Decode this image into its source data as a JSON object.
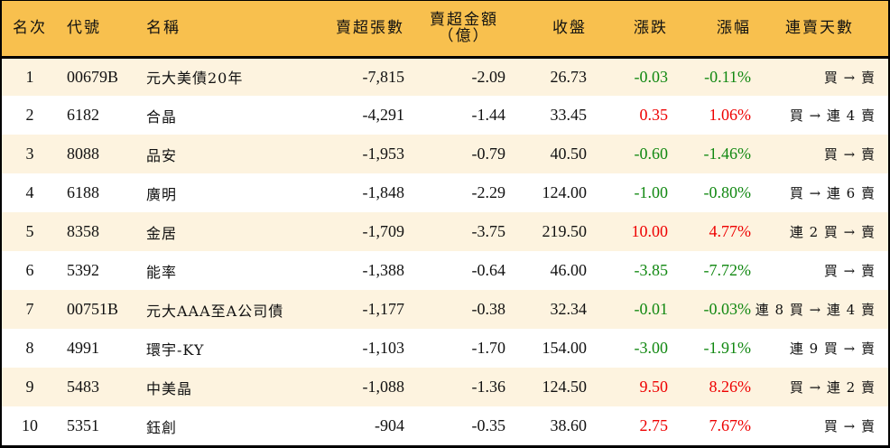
{
  "table": {
    "headers": {
      "rank": "名次",
      "code": "代號",
      "name": "名稱",
      "net_sell_volume": "賣超張數",
      "net_sell_amount_line1": "賣超金額",
      "net_sell_amount_line2": "（億）",
      "close": "收盤",
      "change": "漲跌",
      "change_pct": "漲幅",
      "streak": "連賣天數"
    },
    "colors": {
      "header_bg": "#F8C04E",
      "alt_row_bg": "#FDF3DF",
      "up": "#EE0000",
      "down": "#118811",
      "border": "#000000"
    },
    "rows": [
      {
        "rank": "1",
        "code": "00679B",
        "name": "元大美債20年",
        "volume": "-7,815",
        "amount": "-2.09",
        "close": "26.73",
        "change": "-0.03",
        "pct": "-0.11%",
        "dir": "down",
        "streak": "買 → 賣"
      },
      {
        "rank": "2",
        "code": "6182",
        "name": "合晶",
        "volume": "-4,291",
        "amount": "-1.44",
        "close": "33.45",
        "change": "0.35",
        "pct": "1.06%",
        "dir": "up",
        "streak": "買 → 連 4 賣"
      },
      {
        "rank": "3",
        "code": "8088",
        "name": "品安",
        "volume": "-1,953",
        "amount": "-0.79",
        "close": "40.50",
        "change": "-0.60",
        "pct": "-1.46%",
        "dir": "down",
        "streak": "買 → 賣"
      },
      {
        "rank": "4",
        "code": "6188",
        "name": "廣明",
        "volume": "-1,848",
        "amount": "-2.29",
        "close": "124.00",
        "change": "-1.00",
        "pct": "-0.80%",
        "dir": "down",
        "streak": "買 → 連 6 賣"
      },
      {
        "rank": "5",
        "code": "8358",
        "name": "金居",
        "volume": "-1,709",
        "amount": "-3.75",
        "close": "219.50",
        "change": "10.00",
        "pct": "4.77%",
        "dir": "up",
        "streak": "連 2 買 → 賣"
      },
      {
        "rank": "6",
        "code": "5392",
        "name": "能率",
        "volume": "-1,388",
        "amount": "-0.64",
        "close": "46.00",
        "change": "-3.85",
        "pct": "-7.72%",
        "dir": "down",
        "streak": "買 → 賣"
      },
      {
        "rank": "7",
        "code": "00751B",
        "name": "元大AAA至A公司債",
        "volume": "-1,177",
        "amount": "-0.38",
        "close": "32.34",
        "change": "-0.01",
        "pct": "-0.03%",
        "dir": "down",
        "streak": "連 8 買 → 連 4 賣"
      },
      {
        "rank": "8",
        "code": "4991",
        "name": "環宇-KY",
        "volume": "-1,103",
        "amount": "-1.70",
        "close": "154.00",
        "change": "-3.00",
        "pct": "-1.91%",
        "dir": "down",
        "streak": "連 9 買 → 賣"
      },
      {
        "rank": "9",
        "code": "5483",
        "name": "中美晶",
        "volume": "-1,088",
        "amount": "-1.36",
        "close": "124.50",
        "change": "9.50",
        "pct": "8.26%",
        "dir": "up",
        "streak": "買 → 連 2 賣"
      },
      {
        "rank": "10",
        "code": "5351",
        "name": "鈺創",
        "volume": "-904",
        "amount": "-0.35",
        "close": "38.60",
        "change": "2.75",
        "pct": "7.67%",
        "dir": "up",
        "streak": "買 → 賣"
      }
    ]
  }
}
